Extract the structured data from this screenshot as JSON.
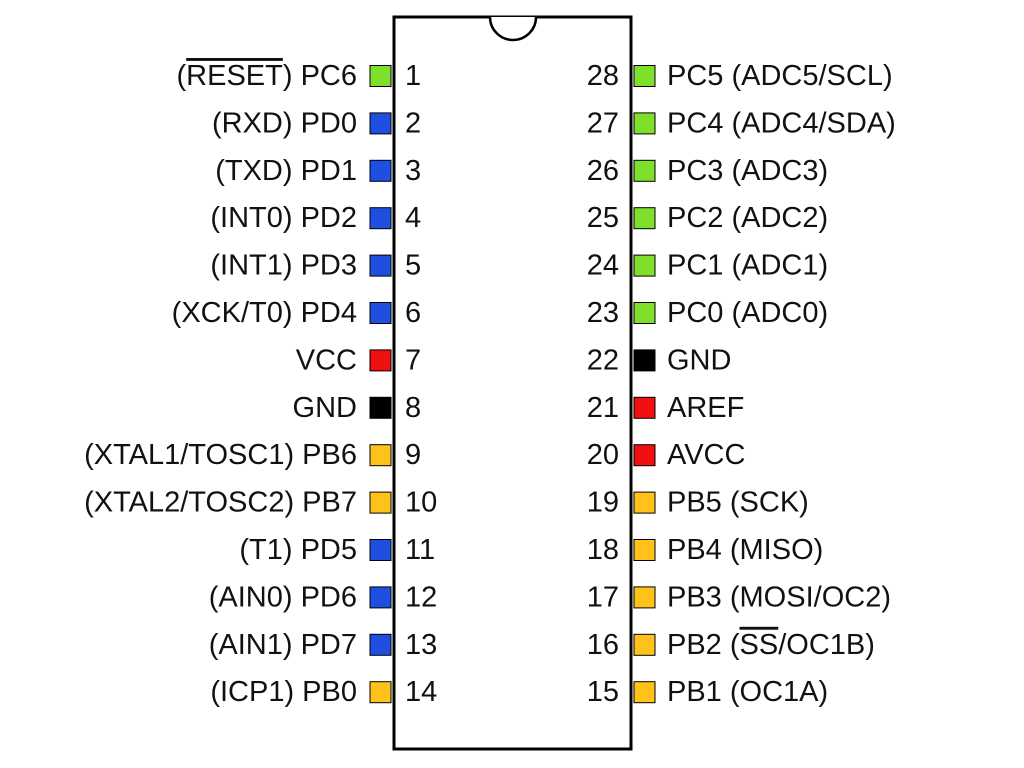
{
  "colors": {
    "green": "#7ee02a",
    "blue": "#1f4fe0",
    "red": "#f01010",
    "black": "#000000",
    "yellow": "#ffc21a",
    "outline": "#000000",
    "text": "#111111"
  },
  "left_pins": [
    {
      "number": "1",
      "prefix": "(",
      "overline": "RESET",
      "suffix": ") PC6",
      "color": "green"
    },
    {
      "number": "2",
      "prefix": "(RXD) PD0",
      "overline": "",
      "suffix": "",
      "color": "blue"
    },
    {
      "number": "3",
      "prefix": "(TXD) PD1",
      "overline": "",
      "suffix": "",
      "color": "blue"
    },
    {
      "number": "4",
      "prefix": "(INT0) PD2",
      "overline": "",
      "suffix": "",
      "color": "blue"
    },
    {
      "number": "5",
      "prefix": "(INT1) PD3",
      "overline": "",
      "suffix": "",
      "color": "blue"
    },
    {
      "number": "6",
      "prefix": "(XCK/T0) PD4",
      "overline": "",
      "suffix": "",
      "color": "blue"
    },
    {
      "number": "7",
      "prefix": "VCC",
      "overline": "",
      "suffix": "",
      "color": "red"
    },
    {
      "number": "8",
      "prefix": "GND",
      "overline": "",
      "suffix": "",
      "color": "black"
    },
    {
      "number": "9",
      "prefix": "(XTAL1/TOSC1) PB6",
      "overline": "",
      "suffix": "",
      "color": "yellow"
    },
    {
      "number": "10",
      "prefix": "(XTAL2/TOSC2) PB7",
      "overline": "",
      "suffix": "",
      "color": "yellow"
    },
    {
      "number": "11",
      "prefix": "(T1) PD5",
      "overline": "",
      "suffix": "",
      "color": "blue"
    },
    {
      "number": "12",
      "prefix": "(AIN0) PD6",
      "overline": "",
      "suffix": "",
      "color": "blue"
    },
    {
      "number": "13",
      "prefix": "(AIN1) PD7",
      "overline": "",
      "suffix": "",
      "color": "blue"
    },
    {
      "number": "14",
      "prefix": "(ICP1) PB0",
      "overline": "",
      "suffix": "",
      "color": "yellow"
    }
  ],
  "right_pins": [
    {
      "number": "28",
      "prefix": "PC5 (ADC5/SCL)",
      "overline": "",
      "suffix": "",
      "color": "green"
    },
    {
      "number": "27",
      "prefix": "PC4 (ADC4/SDA)",
      "overline": "",
      "suffix": "",
      "color": "green"
    },
    {
      "number": "26",
      "prefix": "PC3 (ADC3)",
      "overline": "",
      "suffix": "",
      "color": "green"
    },
    {
      "number": "25",
      "prefix": "PC2 (ADC2)",
      "overline": "",
      "suffix": "",
      "color": "green"
    },
    {
      "number": "24",
      "prefix": "PC1 (ADC1)",
      "overline": "",
      "suffix": "",
      "color": "green"
    },
    {
      "number": "23",
      "prefix": "PC0 (ADC0)",
      "overline": "",
      "suffix": "",
      "color": "green"
    },
    {
      "number": "22",
      "prefix": "GND",
      "overline": "",
      "suffix": "",
      "color": "black"
    },
    {
      "number": "21",
      "prefix": "AREF",
      "overline": "",
      "suffix": "",
      "color": "red"
    },
    {
      "number": "20",
      "prefix": "AVCC",
      "overline": "",
      "suffix": "",
      "color": "red"
    },
    {
      "number": "19",
      "prefix": "PB5 (SCK)",
      "overline": "",
      "suffix": "",
      "color": "yellow"
    },
    {
      "number": "18",
      "prefix": "PB4 (MISO)",
      "overline": "",
      "suffix": "",
      "color": "yellow"
    },
    {
      "number": "17",
      "prefix": "PB3 (MOSI/OC2)",
      "overline": "",
      "suffix": "",
      "color": "yellow"
    },
    {
      "number": "16",
      "prefix": "PB2 (",
      "overline": "SS",
      "suffix": "/OC1B)",
      "color": "yellow"
    },
    {
      "number": "15",
      "prefix": "PB1 (OC1A)",
      "overline": "",
      "suffix": "",
      "color": "yellow"
    }
  ]
}
